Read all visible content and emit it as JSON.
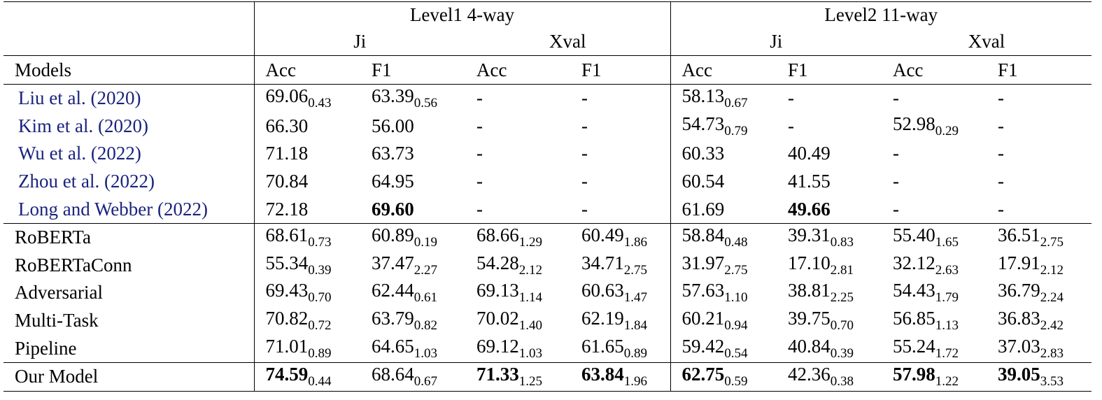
{
  "table": {
    "header": {
      "levels": [
        "Level1 4-way",
        "Level2 11-way"
      ],
      "splits": [
        "Ji",
        "Xval",
        "Ji",
        "Xval"
      ],
      "models_label": "Models",
      "metrics": [
        "Acc",
        "F1",
        "Acc",
        "F1",
        "Acc",
        "F1",
        "Acc",
        "F1"
      ]
    },
    "groups": [
      {
        "rows": [
          {
            "model": "Liu et al. (2020)",
            "cite": true,
            "cells": [
              {
                "v": "69.06",
                "s": "0.43"
              },
              {
                "v": "63.39",
                "s": "0.56"
              },
              {
                "v": "-"
              },
              {
                "v": "-"
              },
              {
                "v": "58.13",
                "s": "0.67"
              },
              {
                "v": "-"
              },
              {
                "v": "-"
              },
              {
                "v": "-"
              }
            ]
          },
          {
            "model": "Kim et al. (2020)",
            "cite": true,
            "cells": [
              {
                "v": "66.30"
              },
              {
                "v": "56.00"
              },
              {
                "v": "-"
              },
              {
                "v": "-"
              },
              {
                "v": "54.73",
                "s": "0.79"
              },
              {
                "v": "-"
              },
              {
                "v": "52.98",
                "s": "0.29"
              },
              {
                "v": "-"
              }
            ]
          },
          {
            "model": "Wu et al. (2022)",
            "cite": true,
            "cells": [
              {
                "v": "71.18"
              },
              {
                "v": "63.73"
              },
              {
                "v": "-"
              },
              {
                "v": "-"
              },
              {
                "v": "60.33"
              },
              {
                "v": "40.49"
              },
              {
                "v": "-"
              },
              {
                "v": "-"
              }
            ]
          },
          {
            "model": "Zhou et al. (2022)",
            "cite": true,
            "cells": [
              {
                "v": "70.84"
              },
              {
                "v": "64.95"
              },
              {
                "v": "-"
              },
              {
                "v": "-"
              },
              {
                "v": "60.54"
              },
              {
                "v": "41.55"
              },
              {
                "v": "-"
              },
              {
                "v": "-"
              }
            ]
          },
          {
            "model": "Long and Webber (2022)",
            "cite": true,
            "cells": [
              {
                "v": "72.18"
              },
              {
                "v": "69.60",
                "bold": true
              },
              {
                "v": "-"
              },
              {
                "v": "-"
              },
              {
                "v": "61.69"
              },
              {
                "v": "49.66",
                "bold": true
              },
              {
                "v": "-"
              },
              {
                "v": "-"
              }
            ]
          }
        ]
      },
      {
        "rows": [
          {
            "model": "RoBERTa",
            "cells": [
              {
                "v": "68.61",
                "s": "0.73"
              },
              {
                "v": "60.89",
                "s": "0.19"
              },
              {
                "v": "68.66",
                "s": "1.29"
              },
              {
                "v": "60.49",
                "s": "1.86"
              },
              {
                "v": "58.84",
                "s": "0.48"
              },
              {
                "v": "39.31",
                "s": "0.83"
              },
              {
                "v": "55.40",
                "s": "1.65"
              },
              {
                "v": "36.51",
                "s": "2.75"
              }
            ]
          },
          {
            "model": "RoBERTaConn",
            "cells": [
              {
                "v": "55.34",
                "s": "0.39"
              },
              {
                "v": "37.47",
                "s": "2.27"
              },
              {
                "v": "54.28",
                "s": "2.12"
              },
              {
                "v": "34.71",
                "s": "2.75"
              },
              {
                "v": "31.97",
                "s": "2.75"
              },
              {
                "v": "17.10",
                "s": "2.81"
              },
              {
                "v": "32.12",
                "s": "2.63"
              },
              {
                "v": "17.91",
                "s": "2.12"
              }
            ]
          },
          {
            "model": "Adversarial",
            "cells": [
              {
                "v": "69.43",
                "s": "0.70"
              },
              {
                "v": "62.44",
                "s": "0.61"
              },
              {
                "v": "69.13",
                "s": "1.14"
              },
              {
                "v": "60.63",
                "s": "1.47"
              },
              {
                "v": "57.63",
                "s": "1.10"
              },
              {
                "v": "38.81",
                "s": "2.25"
              },
              {
                "v": "54.43",
                "s": "1.79"
              },
              {
                "v": "36.79",
                "s": "2.24"
              }
            ]
          },
          {
            "model": "Multi-Task",
            "cells": [
              {
                "v": "70.82",
                "s": "0.72"
              },
              {
                "v": "63.79",
                "s": "0.82"
              },
              {
                "v": "70.02",
                "s": "1.40"
              },
              {
                "v": "62.19",
                "s": "1.84"
              },
              {
                "v": "60.21",
                "s": "0.94"
              },
              {
                "v": "39.75",
                "s": "0.70"
              },
              {
                "v": "56.85",
                "s": "1.13"
              },
              {
                "v": "36.83",
                "s": "2.42"
              }
            ]
          },
          {
            "model": "Pipeline",
            "cells": [
              {
                "v": "71.01",
                "s": "0.89"
              },
              {
                "v": "64.65",
                "s": "1.03"
              },
              {
                "v": "69.12",
                "s": "1.03"
              },
              {
                "v": "61.65",
                "s": "0.89"
              },
              {
                "v": "59.42",
                "s": "0.54"
              },
              {
                "v": "40.84",
                "s": "0.39"
              },
              {
                "v": "55.24",
                "s": "1.72"
              },
              {
                "v": "37.03",
                "s": "2.83"
              }
            ]
          }
        ]
      },
      {
        "rows": [
          {
            "model": "Our Model",
            "cells": [
              {
                "v": "74.59",
                "s": "0.44",
                "bold": true
              },
              {
                "v": "68.64",
                "s": "0.67"
              },
              {
                "v": "71.33",
                "s": "1.25",
                "bold": true
              },
              {
                "v": "63.84",
                "s": "1.96",
                "bold": true
              },
              {
                "v": "62.75",
                "s": "0.59",
                "bold": true
              },
              {
                "v": "42.36",
                "s": "0.38"
              },
              {
                "v": "57.98",
                "s": "1.22",
                "bold": true
              },
              {
                "v": "39.05",
                "s": "3.53",
                "bold": true
              }
            ]
          }
        ]
      }
    ]
  }
}
